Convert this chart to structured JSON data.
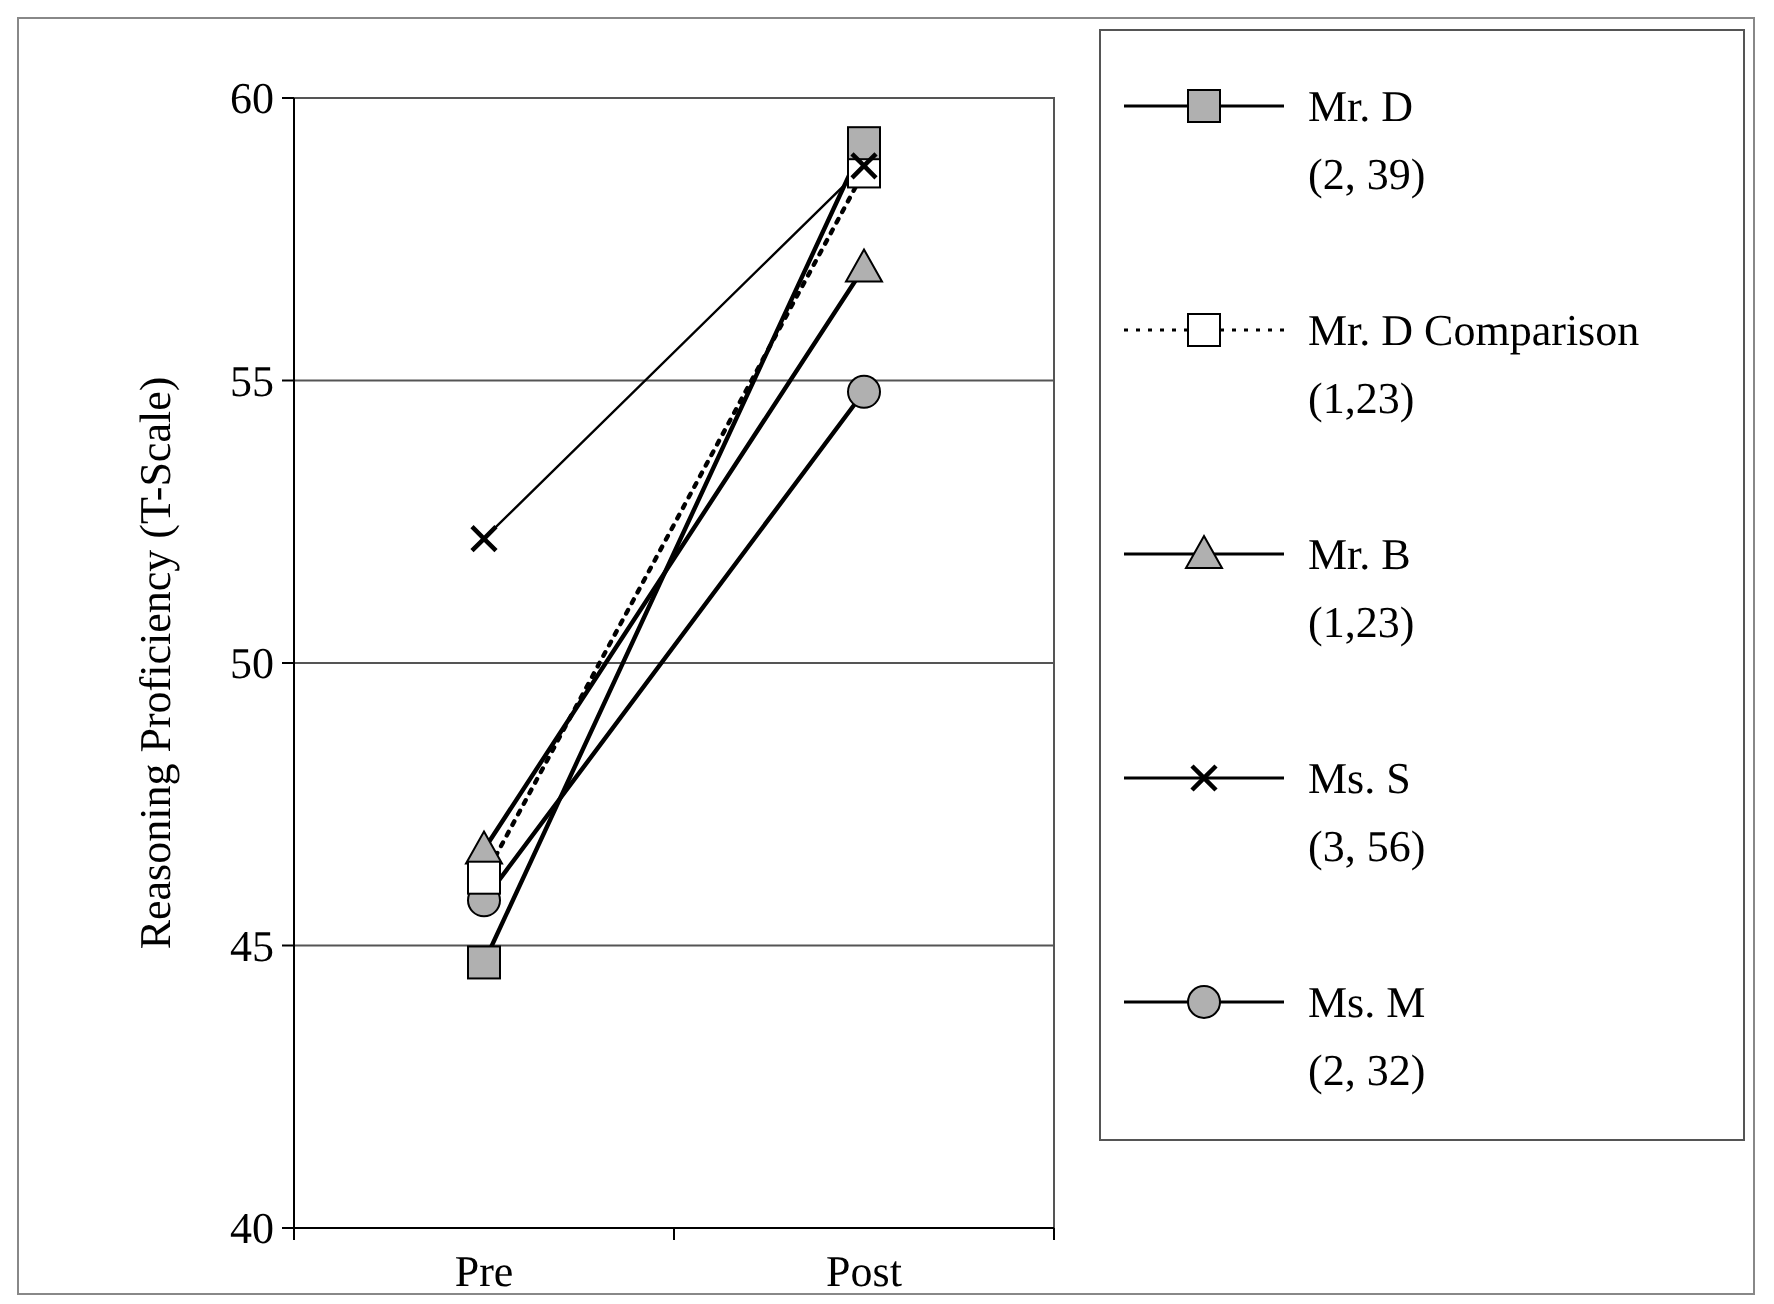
{
  "chart_data": {
    "type": "line",
    "ylabel": "Reasoning Proficiency (T-Scale)",
    "categories": [
      "Pre",
      "Post"
    ],
    "series": [
      {
        "name": "Mr. D (2, 39)",
        "color": "#000000",
        "marker": "square",
        "line_style": "solid",
        "values": [
          44.7,
          59.2
        ]
      },
      {
        "name": "Mr. D Comparison (1,23)",
        "color": "#000000",
        "marker": "square",
        "line_style": "dotted",
        "values": [
          46.2,
          58.7
        ]
      },
      {
        "name": "Mr. B (1,23)",
        "color": "#000000",
        "marker": "triangle",
        "line_style": "solid",
        "values": [
          46.7,
          57.0
        ]
      },
      {
        "name": "Ms. S (3, 56)",
        "color": "#000000",
        "marker": "cross",
        "line_style": "solid",
        "values": [
          52.2,
          58.8
        ]
      },
      {
        "name": "Ms. M (2, 32)",
        "color": "#000000",
        "marker": "circle",
        "line_style": "solid",
        "values": [
          45.8,
          54.8
        ]
      }
    ],
    "ylim": [
      40,
      60
    ],
    "yticks": [
      40,
      45,
      50,
      55,
      60
    ],
    "grid": "y",
    "legend": "right"
  }
}
